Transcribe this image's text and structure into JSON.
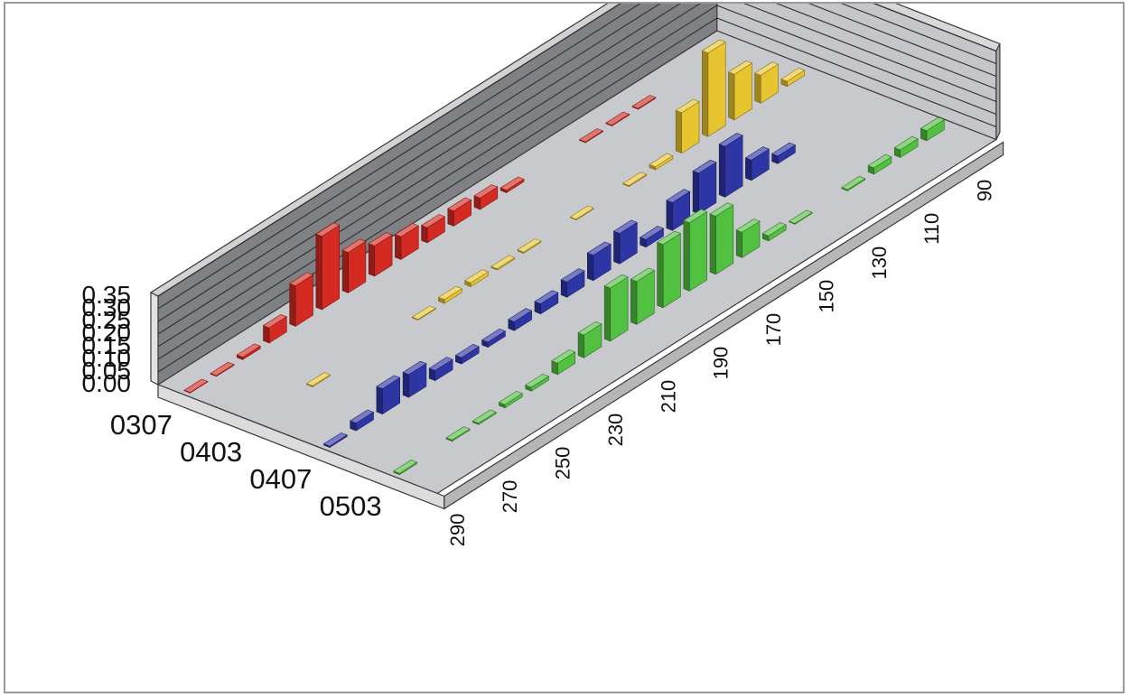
{
  "chart_data": {
    "type": "bar",
    "subtype": "3d-bar",
    "title": "",
    "xlabel": "",
    "ylabel": "",
    "zlabel": "",
    "ylim": [
      0,
      0.35
    ],
    "yticks": [
      "0.00",
      "0.05",
      "0.10",
      "0.15",
      "0.20",
      "0.25",
      "0.30",
      "0.35"
    ],
    "x": [
      290,
      280,
      270,
      260,
      250,
      240,
      230,
      220,
      210,
      200,
      190,
      180,
      170,
      160,
      150,
      140,
      130,
      120,
      110,
      100,
      90
    ],
    "xticks": [
      "290",
      "270",
      "250",
      "230",
      "210",
      "190",
      "170",
      "150",
      "130",
      "110",
      "90"
    ],
    "grid": true,
    "legend": "none",
    "series": [
      {
        "name": "0307",
        "color": "#d42a22",
        "values": [
          0.002,
          0.003,
          0.01,
          0.06,
          0.16,
          0.29,
          0.16,
          0.12,
          0.09,
          0.06,
          0.06,
          0.045,
          0.01,
          0.0,
          0.0,
          0.003,
          0.003,
          0.003,
          0.0,
          0.0,
          0.0
        ]
      },
      {
        "name": "0403",
        "color": "#e8c430",
        "values": [
          0.0,
          0.0,
          0.004,
          0.0,
          0.0,
          0.0,
          0.003,
          0.015,
          0.015,
          0.005,
          0.005,
          0.0,
          0.003,
          0.0,
          0.004,
          0.012,
          0.16,
          0.33,
          0.18,
          0.11,
          0.02
        ]
      },
      {
        "name": "0407",
        "color": "#2e36a6",
        "values": [
          0.005,
          0.03,
          0.1,
          0.09,
          0.04,
          0.025,
          0.02,
          0.035,
          0.04,
          0.06,
          0.1,
          0.12,
          0.03,
          0.11,
          0.16,
          0.2,
          0.08,
          0.03,
          0.0,
          0.0,
          0.0
        ]
      },
      {
        "name": "0503",
        "color": "#52c040",
        "values": [
          0.005,
          0.0,
          0.005,
          0.005,
          0.013,
          0.015,
          0.045,
          0.09,
          0.21,
          0.17,
          0.25,
          0.27,
          0.23,
          0.1,
          0.02,
          0.003,
          0.0,
          0.005,
          0.025,
          0.03,
          0.04
        ]
      }
    ]
  }
}
